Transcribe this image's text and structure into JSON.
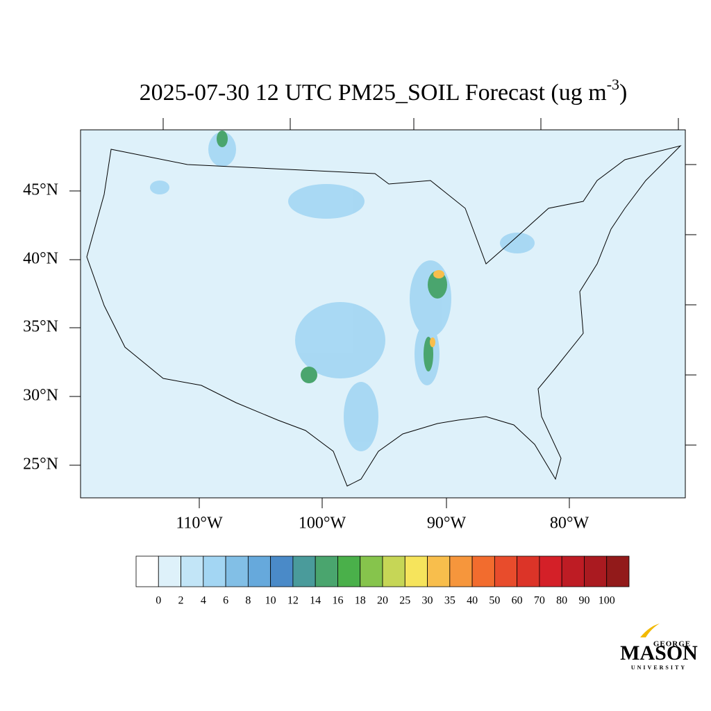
{
  "title": {
    "main": "2025-07-30 12 UTC PM25_SOIL Forecast (ug m",
    "superscript": "-3",
    "close": ")"
  },
  "map": {
    "lat_labels": [
      "45°N",
      "40°N",
      "35°N",
      "30°N",
      "25°N"
    ],
    "lon_labels": [
      "110°W",
      "100°W",
      "90°W",
      "80°W"
    ]
  },
  "colorbar": {
    "levels": [
      0,
      2,
      4,
      6,
      8,
      10,
      12,
      14,
      16,
      18,
      20,
      25,
      30,
      35,
      40,
      50,
      60,
      70,
      80,
      90,
      100
    ],
    "colors": [
      "#ffffff",
      "#def1fa",
      "#c2e5f7",
      "#a3d6f3",
      "#82bfe6",
      "#66a9dc",
      "#4a8ac8",
      "#4a9b9b",
      "#4aa56e",
      "#4ab04a",
      "#86c44c",
      "#c6d656",
      "#f6e45c",
      "#f8be4c",
      "#f6963c",
      "#f26c2e",
      "#e84c2c",
      "#dc3428",
      "#d42028",
      "#be1c24",
      "#aa1a20",
      "#921a1a"
    ]
  },
  "logo": {
    "top": "GEORGE",
    "main": "MASON",
    "bottom": "UNIVERSITY"
  }
}
